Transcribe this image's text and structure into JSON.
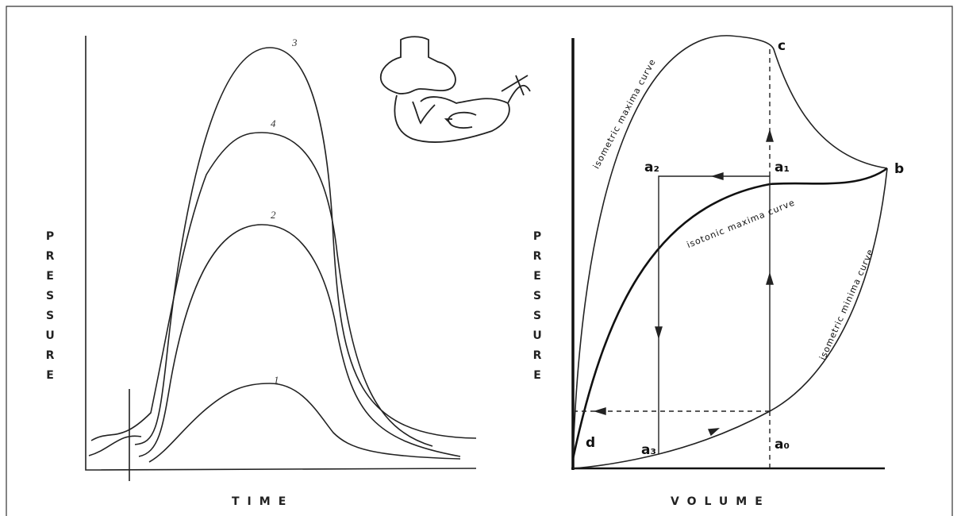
{
  "left_panel": {
    "y_label": "PRESSURE",
    "x_label": "TIME",
    "curve_labels": [
      "1",
      "2",
      "3",
      "4"
    ]
  },
  "right_panel": {
    "y_label": "PRESSURE",
    "x_label": "VOLUME",
    "point_labels": [
      "c",
      "b",
      "a₁",
      "a₂",
      "d",
      "a₃",
      "a₀"
    ],
    "curve_labels": [
      "isometric maxima curve",
      "isotonic maxima curve",
      "isometric minima curve"
    ]
  }
}
